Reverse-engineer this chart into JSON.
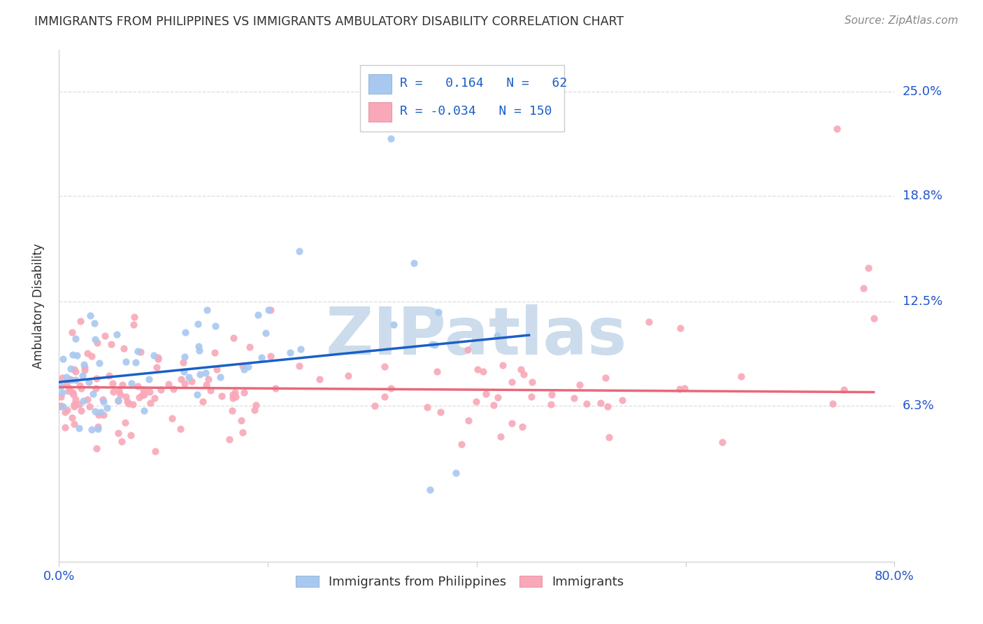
{
  "title": "IMMIGRANTS FROM PHILIPPINES VS IMMIGRANTS AMBULATORY DISABILITY CORRELATION CHART",
  "source": "Source: ZipAtlas.com",
  "ylabel": "Ambulatory Disability",
  "ytick_labels": [
    "6.3%",
    "12.5%",
    "18.8%",
    "25.0%"
  ],
  "ytick_values": [
    0.063,
    0.125,
    0.188,
    0.25
  ],
  "xlim": [
    0.0,
    0.8
  ],
  "ylim": [
    -0.03,
    0.275
  ],
  "legend1_label": "Immigrants from Philippines",
  "legend2_label": "Immigrants",
  "r1": 0.164,
  "n1": 62,
  "r2": -0.034,
  "n2": 150,
  "scatter1_color": "#a8c8f0",
  "scatter2_color": "#f8a8b8",
  "line1_color": "#1a5fc8",
  "line2_color": "#e8687a",
  "watermark": "ZIPatlas",
  "watermark_color": "#ccdcec",
  "background": "#ffffff",
  "grid_color": "#dddddd",
  "title_color": "#303030",
  "axis_label_color": "#303030",
  "ytick_color": "#2255cc",
  "xtick_color": "#2255cc"
}
